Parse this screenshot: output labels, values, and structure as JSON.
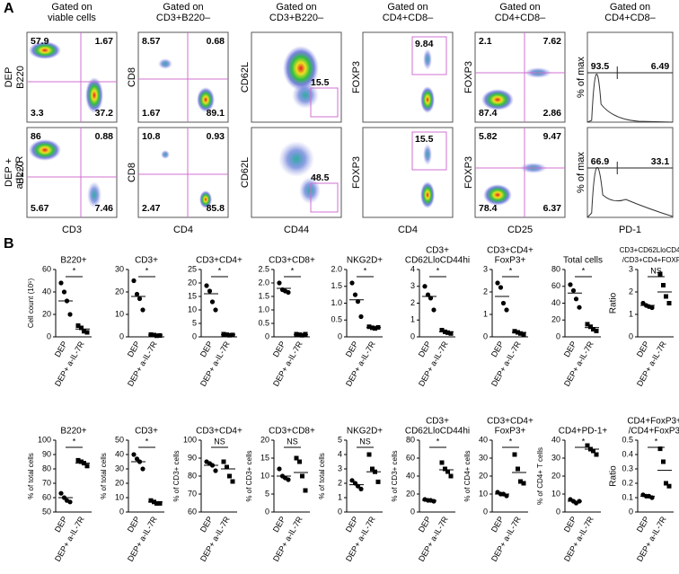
{
  "panel_a": {
    "label": "A",
    "rows": [
      [
        "DEP"
      ],
      [
        "DEP +",
        "a-IL-7R"
      ]
    ],
    "columns": [
      {
        "header": [
          "Gated on",
          "viable cells"
        ],
        "x_label": "CD3",
        "y_label": "B220",
        "plots": [
          [
            "57.9",
            "1.67",
            "3.3",
            "37.2"
          ],
          [
            "86",
            "0.88",
            "5.67",
            "7.46"
          ]
        ]
      },
      {
        "header": [
          "Gated on",
          "CD3+B220–"
        ],
        "x_label": "CD4",
        "y_label": "CD8",
        "plots": [
          [
            "8.57",
            "0.68",
            "1.67",
            "89.1"
          ],
          [
            "10.8",
            "0.93",
            "2.47",
            "85.8"
          ]
        ]
      },
      {
        "header": [
          "Gated on",
          "CD3+B220–"
        ],
        "x_label": "CD44",
        "y_label": "CD62L",
        "plots": [
          [
            "15.5"
          ],
          [
            "48.5"
          ]
        ]
      },
      {
        "header": [
          "Gated on",
          "CD4+CD8–"
        ],
        "x_label": "CD4",
        "y_label": "FOXP3",
        "plots": [
          [
            "9.84"
          ],
          [
            "15.5"
          ]
        ]
      },
      {
        "header": [
          "Gated on",
          "CD4+CD8–"
        ],
        "x_label": "CD25",
        "y_label": "FOXP3",
        "plots": [
          [
            "2.1",
            "7.62",
            "87.4",
            "2.86"
          ],
          [
            "5.82",
            "9.47",
            "78.4",
            "6.37"
          ]
        ]
      },
      {
        "header": [
          "Gated on",
          "CD4+CD8–"
        ],
        "x_label": "PD-1",
        "y_label": "% of max",
        "plots": [
          [
            "93.5",
            "6.49"
          ],
          [
            "66.9",
            "33.1"
          ]
        ]
      }
    ]
  },
  "panel_b_label": "B",
  "chart_data": [
    {
      "type": "dot",
      "title": [
        "B220+"
      ],
      "y_label": "Cell count (10⁵)",
      "categories": [
        "DEP",
        "DEP+ a-IL-7R"
      ],
      "values": [
        [
          48,
          40,
          32,
          20
        ],
        [
          10,
          8,
          5,
          4
        ]
      ],
      "means": [
        32,
        7
      ],
      "significance": "*",
      "ylim": [
        0,
        60
      ],
      "yticks": [
        0,
        20,
        40,
        60
      ]
    },
    {
      "type": "dot",
      "title": [
        "CD3+"
      ],
      "categories": [
        "DEP",
        "DEP+ a-IL-7R"
      ],
      "values": [
        [
          25,
          19,
          17,
          12
        ],
        [
          1,
          0.8,
          0.5,
          0.6
        ]
      ],
      "means": [
        18,
        0.8
      ],
      "significance": "*",
      "ylim": [
        0,
        30
      ],
      "yticks": [
        0,
        10,
        20,
        30
      ]
    },
    {
      "type": "dot",
      "title": [
        "CD3+CD4+"
      ],
      "categories": [
        "DEP",
        "DEP+ a-IL-7R"
      ],
      "values": [
        [
          19,
          17,
          13,
          10
        ],
        [
          1,
          0.8,
          0.6,
          0.7
        ]
      ],
      "means": [
        16,
        0.8
      ],
      "significance": "*",
      "ylim": [
        0,
        25
      ],
      "yticks": [
        0,
        5,
        10,
        15,
        20,
        25
      ]
    },
    {
      "type": "dot",
      "title": [
        "CD3+CD8+"
      ],
      "categories": [
        "DEP",
        "DEP+ a-IL-7R"
      ],
      "values": [
        [
          2.0,
          1.75,
          1.7,
          1.65
        ],
        [
          0.1,
          0.08,
          0.06,
          0.1
        ]
      ],
      "means": [
        1.8,
        0.08
      ],
      "significance": "*",
      "ylim": [
        0,
        2.5
      ],
      "yticks": [
        0,
        0.5,
        {
          "value": 1,
          "label": "1.0"
        },
        1.5,
        {
          "value": 2,
          "label": "2.0"
        },
        2.5
      ]
    },
    {
      "type": "dot",
      "title": [
        "NKG2D+"
      ],
      "categories": [
        "DEP",
        "DEP+ a-IL-7R"
      ],
      "values": [
        [
          1.6,
          1.25,
          1.05,
          0.6
        ],
        [
          0.3,
          0.27,
          0.25,
          0.28
        ]
      ],
      "means": [
        1.1,
        0.28
      ],
      "significance": "*",
      "ylim": [
        0,
        2
      ],
      "yticks": [
        0,
        0.5,
        {
          "value": 1,
          "label": "1.0"
        },
        1.5,
        {
          "value": 2,
          "label": "2.0"
        }
      ]
    },
    {
      "type": "dot",
      "title": [
        "CD3+",
        "CD62LloCD44hi"
      ],
      "categories": [
        "DEP",
        "DEP+ a-IL-7R"
      ],
      "values": [
        [
          3.0,
          2.5,
          2.3,
          1.6
        ],
        [
          0.4,
          0.3,
          0.25,
          0.2
        ]
      ],
      "means": [
        2.4,
        0.3
      ],
      "significance": "*",
      "ylim": [
        0,
        4
      ],
      "yticks": [
        0,
        1,
        2,
        3,
        4
      ]
    },
    {
      "type": "dot",
      "title": [
        "CD3+CD4+",
        "FoxP3+"
      ],
      "categories": [
        "DEP",
        "DEP+ a-IL-7R"
      ],
      "values": [
        [
          2.4,
          2.2,
          1.5,
          1.2
        ],
        [
          0.25,
          0.2,
          0.15,
          0.1
        ]
      ],
      "means": [
        1.8,
        0.2
      ],
      "significance": "*",
      "ylim": [
        0,
        3
      ],
      "yticks": [
        0,
        1,
        2,
        3
      ]
    },
    {
      "type": "dot",
      "title": [
        "Total cells"
      ],
      "categories": [
        "DEP",
        "DEP+ a-IL-7R"
      ],
      "values": [
        [
          62,
          55,
          45,
          35
        ],
        [
          15,
          12,
          9,
          7
        ]
      ],
      "means": [
        52,
        11
      ],
      "significance": "*",
      "ylim": [
        0,
        80
      ],
      "yticks": [
        0,
        20,
        40,
        60,
        80
      ]
    },
    {
      "type": "dot",
      "title": [
        "CD3+CD62LloCD44hi/",
        "/CD3+CD4+FOXP3+"
      ],
      "y_label": "Ratio",
      "categories": [
        "DEP",
        "DEP+ a-IL-7R"
      ],
      "values": [
        [
          1.5,
          1.4,
          1.35,
          1.3
        ],
        [
          2.8,
          2.3,
          1.8,
          1.5
        ]
      ],
      "means": [
        1.4,
        2.0
      ],
      "significance": "NS",
      "ylim": [
        0,
        3
      ],
      "yticks": [
        0,
        1,
        2,
        3
      ]
    },
    {
      "type": "dot",
      "title": [
        "B220+"
      ],
      "y_label": "% of total cells",
      "categories": [
        "DEP",
        "DEP+ a-IL-7R"
      ],
      "values": [
        [
          63,
          60,
          58,
          57
        ],
        [
          86,
          85,
          84,
          82
        ]
      ],
      "means": [
        60,
        84
      ],
      "significance": "*",
      "ylim": [
        50,
        100
      ],
      "yticks": [
        50,
        60,
        70,
        80,
        90,
        100
      ]
    },
    {
      "type": "dot",
      "title": [
        "CD3+"
      ],
      "y_label": "% of total cells",
      "categories": [
        "DEP",
        "DEP+ a-IL-7R"
      ],
      "values": [
        [
          40,
          37,
          35,
          30
        ],
        [
          8,
          7,
          6,
          6
        ]
      ],
      "means": [
        35,
        7
      ],
      "significance": "*",
      "ylim": [
        0,
        50
      ],
      "yticks": [
        0,
        10,
        20,
        30,
        40,
        50
      ]
    },
    {
      "type": "dot",
      "title": [
        "CD3+CD4+"
      ],
      "y_label": "% of CD3+ cells",
      "categories": [
        "DEP",
        "DEP+ a-IL-7R"
      ],
      "values": [
        [
          88,
          87,
          86,
          83
        ],
        [
          88,
          85,
          80,
          77
        ]
      ],
      "means": [
        86,
        84
      ],
      "significance": "NS",
      "ylim": [
        60,
        100
      ],
      "yticks": [
        60,
        70,
        80,
        90,
        100
      ]
    },
    {
      "type": "dot",
      "title": [
        "CD3+CD8+"
      ],
      "y_label": "% of CD3+ cells",
      "categories": [
        "DEP",
        "DEP+ a-IL-7R"
      ],
      "values": [
        [
          12,
          10,
          9.5,
          9
        ],
        [
          15,
          14,
          10,
          6
        ]
      ],
      "means": [
        10,
        11
      ],
      "significance": "NS",
      "ylim": [
        0,
        20
      ],
      "yticks": [
        0,
        5,
        10,
        15,
        20
      ]
    },
    {
      "type": "dot",
      "title": [
        "NKG2D+"
      ],
      "y_label": "% of total cells",
      "categories": [
        "DEP",
        "DEP+ a-IL-7R"
      ],
      "values": [
        [
          2.2,
          2,
          1.8,
          1.6
        ],
        [
          4,
          3,
          2.8,
          2.1
        ]
      ],
      "means": [
        1.9,
        2.8
      ],
      "significance": "NS",
      "ylim": [
        0,
        5
      ],
      "yticks": [
        0,
        1,
        2,
        3,
        4,
        5
      ]
    },
    {
      "type": "dot",
      "title": [
        "CD3+",
        "CD62LloCD44hi"
      ],
      "y_label": "% of CD3+ cells",
      "categories": [
        "DEP",
        "DEP+ a-IL-7R"
      ],
      "values": [
        [
          14,
          13,
          13,
          12
        ],
        [
          55,
          48,
          45,
          40
        ]
      ],
      "means": [
        13,
        47
      ],
      "significance": "*",
      "ylim": [
        0,
        80
      ],
      "yticks": [
        0,
        20,
        40,
        60,
        80
      ]
    },
    {
      "type": "dot",
      "title": [
        "CD3+CD4+",
        "FoxP3+"
      ],
      "y_label": "% of CD4+ cells",
      "categories": [
        "DEP",
        "DEP+ a-IL-7R"
      ],
      "values": [
        [
          11,
          10,
          10,
          9
        ],
        [
          32,
          24,
          17,
          16
        ]
      ],
      "means": [
        10,
        22
      ],
      "significance": "*",
      "ylim": [
        0,
        40
      ],
      "yticks": [
        0,
        10,
        20,
        30,
        40
      ]
    },
    {
      "type": "dot",
      "title": [
        "CD4+PD-1+"
      ],
      "y_label": "% of CD4+ T cells",
      "categories": [
        "DEP",
        "DEP+ a-IL-7R"
      ],
      "values": [
        [
          7,
          6,
          5,
          6
        ],
        [
          37,
          35,
          34,
          32
        ]
      ],
      "means": [
        6,
        35
      ],
      "significance": "*",
      "ylim": [
        0,
        40
      ],
      "yticks": [
        0,
        10,
        20,
        30,
        40
      ]
    },
    {
      "type": "dot",
      "title": [
        "CD4+FoxP3+/",
        "/CD4+FoxP3-"
      ],
      "y_label": "Ratio",
      "categories": [
        "DEP",
        "DEP+ a-IL-7R"
      ],
      "values": [
        [
          0.12,
          0.11,
          0.11,
          0.1
        ],
        [
          0.44,
          0.35,
          0.2,
          0.18
        ]
      ],
      "means": [
        0.11,
        0.29
      ],
      "significance": "*",
      "ylim": [
        0,
        0.5
      ],
      "yticks": [
        0,
        0.1,
        0.2,
        0.3,
        0.4,
        0.5
      ]
    }
  ]
}
